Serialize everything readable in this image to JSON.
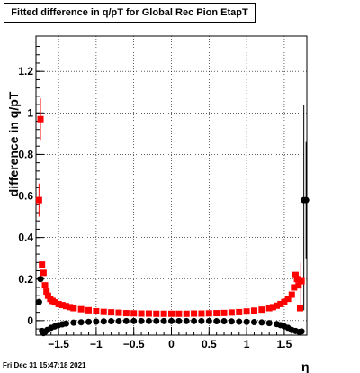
{
  "chart_data": {
    "type": "scatter",
    "title": "Fitted difference in q/pT for Global Rec Pion EtapT",
    "xlabel": "η",
    "ylabel": "difference in q/pT",
    "xlim": [
      -1.8,
      1.8
    ],
    "ylim": [
      -0.07,
      1.37
    ],
    "x_ticks": [
      -1.5,
      -1,
      -0.5,
      0,
      0.5,
      1,
      1.5
    ],
    "x_tick_labels": [
      "−1.5",
      "−1",
      "−0.5",
      "0",
      "0.5",
      "1",
      "1.5"
    ],
    "y_ticks": [
      0,
      0.2,
      0.4,
      0.6,
      0.8,
      1,
      1.2
    ],
    "y_tick_labels": [
      "0",
      "0.2",
      "0.4",
      "0.6",
      "0.8",
      "1",
      "1.2"
    ],
    "grid": true,
    "series": [
      {
        "color": "#ff0000",
        "marker": "square",
        "points": [
          [
            -1.76,
            0.58
          ],
          [
            -1.74,
            0.97
          ],
          [
            -1.72,
            0.27
          ],
          [
            -1.7,
            0.23
          ],
          [
            -1.68,
            0.17
          ],
          [
            -1.66,
            0.14
          ],
          [
            -1.64,
            0.12
          ],
          [
            -1.61,
            0.105
          ],
          [
            -1.58,
            0.095
          ],
          [
            -1.55,
            0.088
          ],
          [
            -1.5,
            0.08
          ],
          [
            -1.45,
            0.075
          ],
          [
            -1.4,
            0.07
          ],
          [
            -1.35,
            0.065
          ],
          [
            -1.3,
            0.06
          ],
          [
            -1.2,
            0.055
          ],
          [
            -1.1,
            0.05
          ],
          [
            -1.0,
            0.045
          ],
          [
            -0.9,
            0.042
          ],
          [
            -0.8,
            0.04
          ],
          [
            -0.7,
            0.038
          ],
          [
            -0.6,
            0.036
          ],
          [
            -0.5,
            0.035
          ],
          [
            -0.4,
            0.034
          ],
          [
            -0.3,
            0.034
          ],
          [
            -0.2,
            0.033
          ],
          [
            -0.1,
            0.033
          ],
          [
            0.0,
            0.033
          ],
          [
            0.1,
            0.033
          ],
          [
            0.2,
            0.033
          ],
          [
            0.3,
            0.034
          ],
          [
            0.4,
            0.034
          ],
          [
            0.5,
            0.035
          ],
          [
            0.6,
            0.036
          ],
          [
            0.7,
            0.037
          ],
          [
            0.8,
            0.039
          ],
          [
            0.9,
            0.041
          ],
          [
            1.0,
            0.044
          ],
          [
            1.1,
            0.048
          ],
          [
            1.2,
            0.053
          ],
          [
            1.3,
            0.06
          ],
          [
            1.35,
            0.065
          ],
          [
            1.4,
            0.072
          ],
          [
            1.45,
            0.08
          ],
          [
            1.5,
            0.09
          ],
          [
            1.55,
            0.105
          ],
          [
            1.6,
            0.125
          ],
          [
            1.63,
            0.16
          ],
          [
            1.65,
            0.22
          ],
          [
            1.67,
            0.2
          ],
          [
            1.69,
            0.17
          ],
          [
            1.71,
            0.06
          ],
          [
            1.73,
            0.19
          ]
        ]
      },
      {
        "color": "#000000",
        "marker": "circle",
        "points": [
          [
            -1.76,
            0.09
          ],
          [
            -1.74,
            0.2
          ],
          [
            -1.72,
            -0.05
          ],
          [
            -1.7,
            -0.06
          ],
          [
            -1.68,
            -0.055
          ],
          [
            -1.65,
            -0.045
          ],
          [
            -1.6,
            -0.035
          ],
          [
            -1.55,
            -0.028
          ],
          [
            -1.5,
            -0.022
          ],
          [
            -1.45,
            -0.018
          ],
          [
            -1.4,
            -0.014
          ],
          [
            -1.3,
            -0.01
          ],
          [
            -1.2,
            -0.008
          ],
          [
            -1.1,
            -0.006
          ],
          [
            -1.0,
            -0.005
          ],
          [
            -0.9,
            -0.004
          ],
          [
            -0.8,
            -0.003
          ],
          [
            -0.7,
            -0.003
          ],
          [
            -0.6,
            -0.002
          ],
          [
            -0.5,
            -0.002
          ],
          [
            -0.4,
            -0.002
          ],
          [
            -0.3,
            -0.002
          ],
          [
            -0.2,
            -0.002
          ],
          [
            -0.1,
            -0.002
          ],
          [
            0.0,
            -0.002
          ],
          [
            0.1,
            -0.002
          ],
          [
            0.2,
            -0.002
          ],
          [
            0.3,
            -0.002
          ],
          [
            0.4,
            -0.002
          ],
          [
            0.5,
            -0.002
          ],
          [
            0.6,
            -0.003
          ],
          [
            0.7,
            -0.003
          ],
          [
            0.8,
            -0.004
          ],
          [
            0.9,
            -0.005
          ],
          [
            1.0,
            -0.006
          ],
          [
            1.1,
            -0.007
          ],
          [
            1.2,
            -0.009
          ],
          [
            1.3,
            -0.012
          ],
          [
            1.4,
            -0.017
          ],
          [
            1.45,
            -0.022
          ],
          [
            1.5,
            -0.028
          ],
          [
            1.55,
            -0.035
          ],
          [
            1.6,
            -0.045
          ],
          [
            1.65,
            -0.05
          ],
          [
            1.7,
            -0.055
          ],
          [
            1.73,
            -0.052
          ],
          [
            1.76,
            0.58
          ],
          [
            1.79,
            0.58
          ]
        ]
      }
    ],
    "error_bars": [
      {
        "x": -1.74,
        "y_low": 0.87,
        "y_high": 1.07,
        "color": "#ff0000"
      },
      {
        "x": -1.76,
        "y_low": 0.5,
        "y_high": 0.66,
        "color": "#ff0000"
      },
      {
        "x": 1.72,
        "y_low": 0.05,
        "y_high": 0.28,
        "color": "#ff0000"
      },
      {
        "x": 1.76,
        "y_low": 0.05,
        "y_high": 1.04,
        "color": "#000000"
      },
      {
        "x": 1.79,
        "y_low": 0.3,
        "y_high": 0.86,
        "color": "#000000"
      }
    ]
  },
  "footer": {
    "timestamp": "Fri Dec 31 15:47:18 2021"
  }
}
